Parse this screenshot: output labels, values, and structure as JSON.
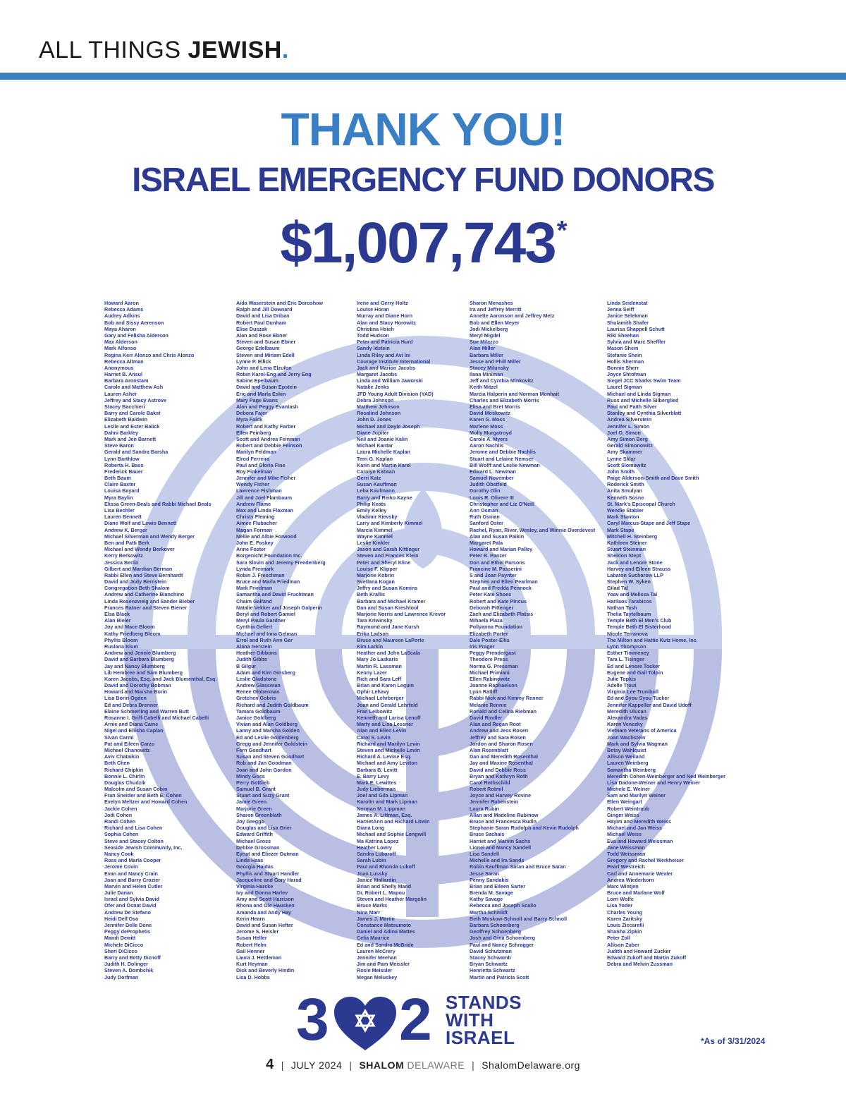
{
  "masthead": {
    "light": "ALL THINGS ",
    "bold": "JEWISH",
    "dot": "."
  },
  "heading": {
    "thank": "THANK YOU!",
    "fund": "ISRAEL EMERGENCY FUND DONORS",
    "total": "$1,007,743",
    "asterisk": "*"
  },
  "colors": {
    "light_blue": "#3a7fc4",
    "dark_blue": "#2b3990",
    "emblem": "#c4cdea"
  },
  "donors": [
    [
      "Howard Aaron",
      "Rebecca Adams",
      "Audrey Adkins",
      "Bob and Sissy Aerenson",
      "Maya Aharon",
      "Gary and Felisha Alderson",
      "Max Alderson",
      "Mark Alfonso",
      "Regina Kerr Alonzo and Chris Alonzo",
      "Rebecca Altman",
      "Anonymous",
      "Harriet B. Ansul",
      "Barbara Aronstam",
      "Carole and Matthew Ash",
      "Lauren Asher",
      "Jeffrey and Stacy Astrove",
      "Stacey Bacchieri",
      "Barry and Carole Bakst",
      "Elizabeth Baldwin",
      "Leslie and Ester Balick",
      "Dahni Barkley",
      "Mark and Jen Barnett",
      "Steve Baron",
      "Gerald and Sandra Barsha",
      "Lynn Barthlow",
      "Roberta H. Bass",
      "Frederick Bauer",
      "Beth Baum",
      "Claire Baxter",
      "Louisa Bayard",
      "Myra Baylin",
      "Elissa Green-Beals and Rabbi Michael Beals",
      "Lisa Bechler",
      "Lauren Bennett",
      "Diane Wolf and Lewis Bennett",
      "Andrew K. Berger",
      "Michael Silverman and Wendy Berger",
      "Ben and Patti Berk",
      "Michael and Wendy Berkover",
      "Kerry Berkowitz",
      "Jessica Berlin",
      "Gilbert and Mardian Berman",
      "Rabbi Ellen and Steve Bernhardt",
      "David and Jody Bernstein",
      "Congregation Beth Shalom",
      "Andrew and Catherine Bianchino",
      "Linda Rosenzweig and Sander Bieber",
      "Frances Ratner and Steven Biener",
      "Elsa Black",
      "Alan Bleier",
      "Joy and Mace Bloom",
      "Kathy Friedberg Bloom",
      "Phyllis Bloom",
      "Ruslana Blum",
      "Andrew and Jennie Blumberg",
      "David and Barbara Blumberg",
      "Jay and Nancy Blumberg",
      "Lib Hembree and Sam Blumberg",
      "Karen Jacobs, Esq. and Jack Blumenthal, Esq.",
      "David and Dorothy Bobman",
      "Howard and Marsha Borin",
      "Lisa Borin Ogden",
      "Ed and Debra Brenner",
      "Elaine Schmerling and Warren Butt",
      "Rosanne I. Griff-Cabelli and Michael Cabelli",
      "Arnie and Diana Caine",
      "Nigel and Ellisha Caplan",
      "Sivan Carmi",
      "Pat and Eileen Carzo",
      "Michael Chanowitz",
      "Aviv Chataikin",
      "Beth Chen",
      "Richard Chipkin",
      "Bonnie L. Chirlin",
      "Douglas Chudzik",
      "Malcolm and Susan Cobin",
      "Fran Sneider and Beth E. Cohen",
      "Evelyn Meltzer and Howard Cohen",
      "Jackie Cohen",
      "Jodi Cohen",
      "Randi Cohen",
      "Richard and Lisa Cohen",
      "Sophia Cohen",
      "Steve and Stacey Colton",
      "Seaside Jewish Community, Inc.",
      "Nancy Cook",
      "Ross and Marla Cooper",
      "Jerome Covin",
      "Evan and Nancy Crain",
      "Joan and Barry Crozier",
      "Marvin and Helen Cutler",
      "Julie Danan",
      "Israel and Sylvia David",
      "Ofer and Osnat David",
      "Andrew De Stefano",
      "Heidi Dell'Oso",
      "Jennifer Delle Done",
      "Peggy deProphetis",
      "Mandi Dewitt",
      "Michele DiCicco",
      "Sheri DiCicco",
      "Barry and Betty Diznoff",
      "Judith H. Dolinger",
      "Steven A. Dombchik",
      "Judy Dorfman"
    ],
    [
      "Aida Waserstein and Eric Doroshow",
      "Ralph and Jill Downard",
      "David and Lisa Driban",
      "Robert Paul Dunham",
      "Elise Duszak",
      "Alan and Rose Ebner",
      "Steven and Susan Ebner",
      "George Edelbaum",
      "Steven and Miriam Edell",
      "Lynne P. Ellick",
      "John and Lena Elzufon",
      "Robin Karol-Eng and Jerry Eng",
      "Sabine Epelbaum",
      "David and Susan Epstein",
      "Eric and Marla Eskin",
      "Mary Page Evans",
      "Alan and Peggy Evantash",
      "Debora Fajer",
      "Myra Falck",
      "Robert and Kathy Farber",
      "Ellen Feinberg",
      "Scott and Andrea Feinman",
      "Robert and Debbie Feinson",
      "Marilyn Feldman",
      "Elrod Ferreira",
      "Paul and Gloria Fine",
      "Roy Finkelman",
      "Jennifer and Mike Fisher",
      "Wendy Fisher",
      "Lawrence Fishman",
      "Jill and Joel Flambaum",
      "Andrew Flame",
      "Max and Linda Flaxman",
      "Christy Fleming",
      "Aimee Flubacher",
      "Magan Forman",
      "Nellie and Albie Forwood",
      "John E. Foskey",
      "Anne Foster",
      "Borgenicht Foundation Inc.",
      "Sara Slovin and Jeremy Freedenberg",
      "Lynda Freimark",
      "Robin J. Freschman",
      "Bruce and Marla Friedman",
      "Mark Friedman",
      "Samantha and David Fruchtman",
      "Chaim Galfand",
      "Natalie Vekker and Joseph Galperin",
      "Beryl and Robert Gamiel",
      "Meryl Paula Gardner",
      "Cynthia Gellert",
      "Michael and Inna Gelman",
      "Errol and Ruth Ann Ger",
      "Alana Gerstein",
      "Heather Gibbons",
      "Judith Gibbs",
      "B Gilgur",
      "Adam and Kim Ginsberg",
      "Leslie Gladstone",
      "Andrew Glassman",
      "Renee Globerman",
      "Gretchen Gobris",
      "Richard and Judith Goldbaum",
      "Tamara Goldbaum",
      "Janice Goldberg",
      "Vivian and Alan Goldberg",
      "Lanny and Marsha Golden",
      "Ed and Leslie Goldenberg",
      "Gregg and Jennifer Goldstein",
      "Fern Goodhart",
      "Susan and Steven Goodhart",
      "Rob and Jan Goodman",
      "Joan and John Gordon",
      "Mindy Goss",
      "Perry Gottlieb",
      "Samuel B. Grant",
      "Stuart and Suzy Grant",
      "Jamie Green",
      "Marjorie Green",
      "Sharon Greenblath",
      "Joy Greggo",
      "Douglas and Lisa Grier",
      "Edward Griffith",
      "Michael Gross",
      "Debbie Grossman",
      "Eynat and Eliezer Gutman",
      "Linda Haas",
      "Georgia Haidas",
      "Phyllis and Stuart Handler",
      "Jacqueline and Gary Harad",
      "Virginia Harcke",
      "Ivy and Donna Harlev",
      "Amy and Scott Harrison",
      "Rhona and Ole Hausken",
      "Amanda and Andy Hay",
      "Kerin Hearn",
      "David and Susan Hefter",
      "Jerome S. Heisler",
      "Susan Heller",
      "Robert Helm",
      "Gail Henner",
      "Laura J. Hettleman",
      "Kurt Heyman",
      "Dick and Beverly Hindin",
      "Lisa D. Hobbs"
    ],
    [
      "Irene and Gerry Holtz",
      "Louise Horan",
      "Murray and Diane Horn",
      "Alan and Stacy Horowitz",
      "Christina Hsieh",
      "Todd Hudson",
      "Peter and Patricia Hurd",
      "Sandy Idstein",
      "Linda Riley and Avi Ini",
      "Courage Institute International",
      "Jack and Marion Jacobs",
      "Margaret Jacobs",
      "Linda and William Jaworski",
      "Natalie Jenks",
      "JFD Young Adult Division (YAD)",
      "Debra Johnson",
      "Matthew Johnson",
      "Rosalind Johnson",
      "John D. Jones",
      "Michael and Dayle Joseph",
      "Diane Jupiter",
      "Neil and Joanie Kalin",
      "Michael Kantar",
      "Laura Michelle Kaplan",
      "Terri G. Kaplan",
      "Karin and Martin Karel",
      "Carolyn Katwan",
      "Gerri Katz",
      "Susan Kauffman",
      "Leba Kaufmann",
      "Barry and Reiko Kayne",
      "Philip Keats",
      "Emily Kelley",
      "Vladimir Kievsky",
      "Larry and Kimberly Kimmel",
      "Marcia Kimmel",
      "Wayne Kimmel",
      "Leslie Kinkler",
      "Jason and Sarah Kittinger",
      "Steven and Frances Klein",
      "Peter and Sheryl Kline",
      "Louise F. Klipper",
      "Marjorie Kobrin",
      "Svetlana Kogan",
      "Jeffry and Susan Komins",
      "Beth Krallis",
      "Barbara and Michael Kramer",
      "Dan and Susan Kreshtool",
      "Marjorie Norris and Lawrence Krevor",
      "Tara Kriwinsky",
      "Raymond and Jane Kursh",
      "Erika Ladson",
      "Bruce and Maureen LaPorte",
      "Kim Larkin",
      "Heather and John LaScala",
      "Mary Jo Laskaris",
      "Martin R. Lassman",
      "Kenny Lazer",
      "Rich and Sara Leff",
      "Brian and Karen Legum",
      "Ophir Lehavy",
      "Michael Lehrberger",
      "Joan and Gerald Lehrfeld",
      "Fran Leibowitz",
      "Kenneth and Larisa Lenoff",
      "Marty and Lisa Lessner",
      "Alan and Ellen Levin",
      "Carol S. Levin",
      "Richard and Marilyn Levin",
      "Steven and Michelle Levin",
      "Richard A. Levine Esq.",
      "Michael and Amy Leviton",
      "Barbara B. Levitt",
      "E. Barry Levy",
      "Mark E. Lewittes",
      "Judy Lieberman",
      "Joel and Gila Lipman",
      "Karolin and Mark Lipman",
      "Norman M. Lippman",
      "James A. Littman, Esq.",
      "HarrietAnn and Richard Litwin",
      "Diana Long",
      "Michael and Sophie Longwill",
      "Ma Katrina Lopez",
      "Heather Lowry",
      "Sandra Lubaroff",
      "Sarah Lubin",
      "Paul and Rhonda Lukoff",
      "Joan Lussky",
      "Janice Mallardin",
      "Brian and Shelly Mand",
      "Dr. Robert L. Mapou",
      "Steven and Heather Margolin",
      "Bruce Marks",
      "Nina Marr",
      "James J. Martin",
      "Constance Matsumoto",
      "Daniel and Adina Mattes",
      "Celia Maurice",
      "Ed and Sandra McBride",
      "Lauren McCrery",
      "Jennifer Meehan",
      "Jim and Pam Meissler",
      "Rosie Meissler",
      "Megan Meluskey"
    ],
    [
      "Sharon Menashes",
      "Ira and Jeffrey Merritt",
      "Annette Aaronson and Jeffrey Metz",
      "Bob and Ellen Meyer",
      "Jodi Mickelberg",
      "Meryl Migdel",
      "Sue Milazzo",
      "Alan Miller",
      "Barbara Miller",
      "Jesse and Phill Miller",
      "Stacey Milunsky",
      "Ilana Miniman",
      "Jeff and Cynthia Minkovitz",
      "Keith Mitzel",
      "Marcia Halperin and Norman Monhait",
      "Charles and Elizabeth Morris",
      "Elisa and Bret Morris",
      "David Moskowitz",
      "Karen G. Moss",
      "Marlene Moss",
      "Molly Murgatroyd",
      "Carole A. Myers",
      "Aaron Nachlis",
      "Jerome and Debbie Nachlis",
      "Stuart and Lelaine Nemser",
      "Bill Wolff and Leslie Newman",
      "Edward L. Newman",
      "Samuel November",
      "Judith Obstfeld",
      "Dorothy Olin",
      "Louis R. Olivere III",
      "Christopher and Liz O'Neill",
      "Ann Osman",
      "Ruth Osman",
      "Sanford Oster",
      "Rachel, Ryan, River, Wesley, and Winnie Overdevest",
      "Alan and Susan Paikin",
      "Margaret Pala",
      "Howard and Marian Palley",
      "Peter B. Panzer",
      "Don and Ethel Parsons",
      "Francine M. Passerini",
      "S and Joan Paynter",
      "Stephen and Ellen Pearlman",
      "Paul and Fredda Pennock",
      "Peter Kate Shoes",
      "Robert and Kate Pincus",
      "Deborah Pittenger",
      "Zach and Elizabeth Platsis",
      "Mihaela Plaza",
      "Pollyanna Foundation",
      "Elizabeth Porter",
      "Dale Poster-Ellis",
      "Iris Prager",
      "Peggy Prendergast",
      "Theodore Press",
      "Norma G. Pressman",
      "Michael Primiani",
      "Ellen Rabinowitz",
      "Joanne Raphaelson",
      "Lynn Ratliff",
      "Rabbi Nick and Kimmy Renner",
      "Melanie Rennie",
      "Ronald and Celina Riebman",
      "David Rindler",
      "Alan and Regan Root",
      "Andrew and Jess Rosen",
      "Jeffrey and Sara Rosen",
      "Jordon and Sharon Rosen",
      "Alan Rosenblatt",
      "Dan and Meredith Rosenthal",
      "Jay and Maxine Rosenthal",
      "David and Debbie Ross",
      "Bryan and Kathryn Roth",
      "Carol Rothschild",
      "Robert Rotmil",
      "Joyce and Harvey Rovine",
      "Jennifer Rubenstein",
      "Laura Rubin",
      "Allan and Madeline Rubinow",
      "Bruce and Francesca Rudin",
      "Stephanie Saran Rudolph and Kevin Rudolph",
      "Bruce Sachais",
      "Harriet and Marvin Sachs",
      "Lionel and Nancy Sandell",
      "Lisa Sandell",
      "Michelle and Ira Sands",
      "Robin Kauffman Saran and Bruce Saran",
      "Jesse Saran",
      "Penny Saridakis",
      "Brian and Eileen Sarter",
      "Brenda M. Savage",
      "Kathy Savage",
      "Rebecca and Joseph Scalio",
      "Martha Schmidt",
      "Beth Moskow-Schnoll and Barry Schnoll",
      "Barbara Schoenberg",
      "Geoffrey Schoenberg",
      "Josh and Gina Schoenberg",
      "Paul and Nancy Schragger",
      "David Schutzman",
      "Stacey Schwamb",
      "Bryan Schwartz",
      "Henrietta Schwartz",
      "Martin and Patricia Scott"
    ],
    [
      "Linda Seidenstat",
      "Jenna Seiff",
      "Janice Selekman",
      "Shulamith Shafer",
      "Laurisa Shappell Schutt",
      "Riki Sheehan",
      "Sylvia and Marc Sheffler",
      "Mason Shein",
      "Stefanie Shein",
      "Hollis Sherman",
      "Bonnie Sherr",
      "Joyce Shtofman",
      "Siegel JCC Sharks Swim Team",
      "Laurel Sigman",
      "Michael and Linda Sigman",
      "Russ and Michelle Silberglied",
      "Paul and Faith Silver",
      "Stanley and Cynthia Silverblatt",
      "Andrea Silverstein",
      "Jennifer L. Simon",
      "Joel O. Simon",
      "Amy Simon Berg",
      "Gerald Simonowitz",
      "Amy Skammer",
      "Lynne Sklar",
      "Scott Slomowitz",
      "John Smith",
      "Paige Alderson-Smith and Dave Smith",
      "Roderick Smith",
      "Anita Smulyan",
      "Kenneth Sosne",
      "St. Mark's Episcopal Church",
      "Wendie Stabler",
      "Mark Stanton",
      "Caryl Marcus-Stape and Jeff Stape",
      "Mark Stape",
      "Mitchell H. Steinberg",
      "Kathleen Steiner",
      "Stuart Steinman",
      "Sheldon Stept",
      "Jack and Lenore Stone",
      "Harvey and Eileen Strauss",
      "Labaton Sucharow LLP",
      "Stephen W. Syken",
      "Gilad Tal",
      "Yoav and Melissa Tal",
      "Harilaos Tarabicos",
      "Nathan Tash",
      "Thelia Taytelbaum",
      "Temple Beth El Men's Club",
      "Temple Beth El Sisterhood",
      "Nicole Terranova",
      "The Milton and Hattie Kutz Home, Inc.",
      "Lynn Thompson",
      "Esther Timmeney",
      "Tara L. Tisinger",
      "Ed and Lenore Tocker",
      "Eugene and Gail Tolpin",
      "Julie Topkis",
      "Adelle Trout",
      "Virginia Lee Trumbull",
      "Ed and Syou Syou Tucker",
      "Jennifer Kappeller and David Udoff",
      "Meredith Ulucan",
      "Alexandra Vadas",
      "Karen Venezky",
      "Vietnam Veterans of America",
      "Joan Wachstein",
      "Mark and Sylvia Wagman",
      "Betsy Wahlquist",
      "Allison Weiland",
      "Lauren Weinberg",
      "Samantha Weinberg",
      "Meredith Cohen-Weinberger and Ned Weinberger",
      "Lisa Dadone-Weiner and Henry Weiner",
      "Michele E. Weiner",
      "Sam and Marilyn Weiner",
      "Ellen Weingart",
      "Robert Weintraub",
      "Ginger Weiss",
      "Hayim and Meredith Weiss",
      "Michael and Jan Weiss",
      "Michael Weiss",
      "Eva and Howard Weissman",
      "Jane Weissman",
      "Todd Weissman",
      "Gregory and Rachel Werkheiser",
      "Pearl Westreich",
      "Carl and Annemarie Wexler",
      "Andrea Wiederhorn",
      "Marc Wintjen",
      "Bruce and Marlane Wolf",
      "Lorri Wolfe",
      "Lisa Yoder",
      "Charles Young",
      "Karen Zaritsky",
      "Louis Ziccarelli",
      "ShaSha Zipkin",
      "Peter Zoll",
      "Allison Zuber",
      "Judith and Howard Zucker",
      "Edward Zukoff and Martin Zukoff",
      "Debra and Melvin Zussman"
    ]
  ],
  "logo": {
    "three": "3",
    "two": "2",
    "line1": "STANDS",
    "line2": "WITH",
    "line3": "ISRAEL",
    "icons": [
      "heart-icon",
      "star-of-david-icon"
    ]
  },
  "note": "*As of 3/31/2024",
  "footer": {
    "page": "4",
    "date": "JULY 2024",
    "brand_bold": "SHALOM",
    "brand_light": " DELAWARE",
    "site": "ShalomDelaware.org"
  }
}
